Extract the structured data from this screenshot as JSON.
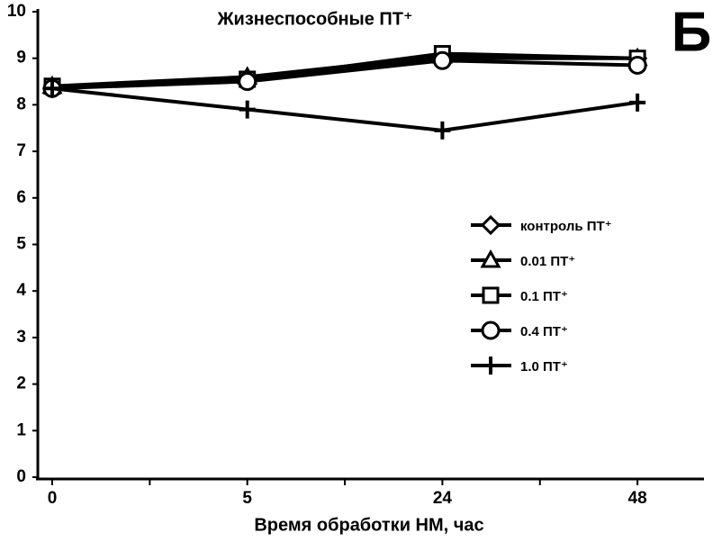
{
  "chart_data": {
    "type": "line",
    "title": "Жизнеспособные ПТ⁺",
    "annotation": "Б",
    "x_label": "Время обработки НМ, час",
    "categories": [
      "0",
      "5",
      "24",
      "48"
    ],
    "ylim": [
      0,
      10
    ],
    "yticks": [
      0,
      1,
      2,
      3,
      4,
      5,
      6,
      7,
      8,
      9,
      10
    ],
    "series": [
      {
        "name": "контроль ПТ⁺",
        "color": "#000000",
        "marker": "diamond",
        "values": [
          8.35,
          8.55,
          9.0,
          9.0
        ]
      },
      {
        "name": "0.01 ПТ⁺",
        "color": "#000000",
        "marker": "triangle",
        "values": [
          8.4,
          8.6,
          9.05,
          9.0
        ]
      },
      {
        "name": "0.1 ПТ⁺",
        "color": "#000000",
        "marker": "square",
        "values": [
          8.4,
          8.55,
          9.1,
          9.0
        ]
      },
      {
        "name": "0.4 ПТ⁺",
        "color": "#000000",
        "marker": "circle",
        "values": [
          8.35,
          8.5,
          8.95,
          8.85
        ]
      },
      {
        "name": "1.0 ПТ⁺",
        "color": "#000000",
        "marker": "plus",
        "values": [
          8.35,
          7.9,
          7.45,
          8.05
        ]
      }
    ]
  }
}
